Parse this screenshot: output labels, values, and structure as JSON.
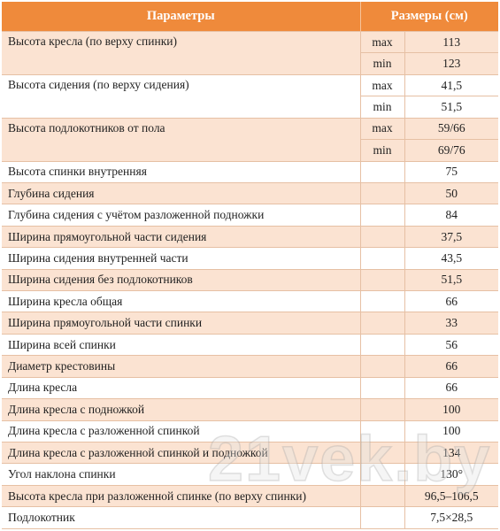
{
  "header": {
    "params": "Параметры",
    "sizes": "Размеры (см)"
  },
  "rows": [
    {
      "name": "Высота кресла (по верху спинки)",
      "values": [
        {
          "mode": "max",
          "value": "113"
        },
        {
          "mode": "min",
          "value": "123"
        }
      ]
    },
    {
      "name": "Высота сидения (по верху сидения)",
      "values": [
        {
          "mode": "max",
          "value": "41,5"
        },
        {
          "mode": "min",
          "value": "51,5"
        }
      ]
    },
    {
      "name": "Высота подлокотников от пола",
      "values": [
        {
          "mode": "max",
          "value": "59/66"
        },
        {
          "mode": "min",
          "value": "69/76"
        }
      ]
    },
    {
      "name": "Высота спинки внутренняя",
      "value": "75"
    },
    {
      "name": "Глубина сидения",
      "value": "50"
    },
    {
      "name": "Глубина сидения с учётом разложенной подножки",
      "value": "84"
    },
    {
      "name": "Ширина прямоугольной части сидения",
      "value": "37,5"
    },
    {
      "name": "Ширина сидения внутренней части",
      "value": "43,5"
    },
    {
      "name": "Ширина сидения без подлокотников",
      "value": "51,5"
    },
    {
      "name": "Ширина кресла общая",
      "value": "66"
    },
    {
      "name": "Ширина прямоугольной части спинки",
      "value": "33"
    },
    {
      "name": "Ширина всей спинки",
      "value": "56"
    },
    {
      "name": "Диаметр крестовины",
      "value": "66"
    },
    {
      "name": "Длина кресла",
      "value": "66"
    },
    {
      "name": "Длина кресла с подножкой",
      "value": "100"
    },
    {
      "name": "Длина кресла с разложенной спинкой",
      "value": "100"
    },
    {
      "name": "Длина кресла с разложенной спинкой и подножкой",
      "value": "134"
    },
    {
      "name": "Угол наклона спинки",
      "value": "130°"
    },
    {
      "name": "Высота кресла при разложенной спинке (по верху спинки)",
      "value": "96,5–106,5"
    },
    {
      "name": "Подлокотник",
      "value": "7,5×28,5"
    }
  ],
  "watermark": "21vek.by",
  "colors": {
    "header_bg": "#ef8a3b",
    "header_text": "#ffffff",
    "row_band": "#fbe3d2",
    "row_plain": "#ffffff",
    "border": "#e6c0a4"
  }
}
